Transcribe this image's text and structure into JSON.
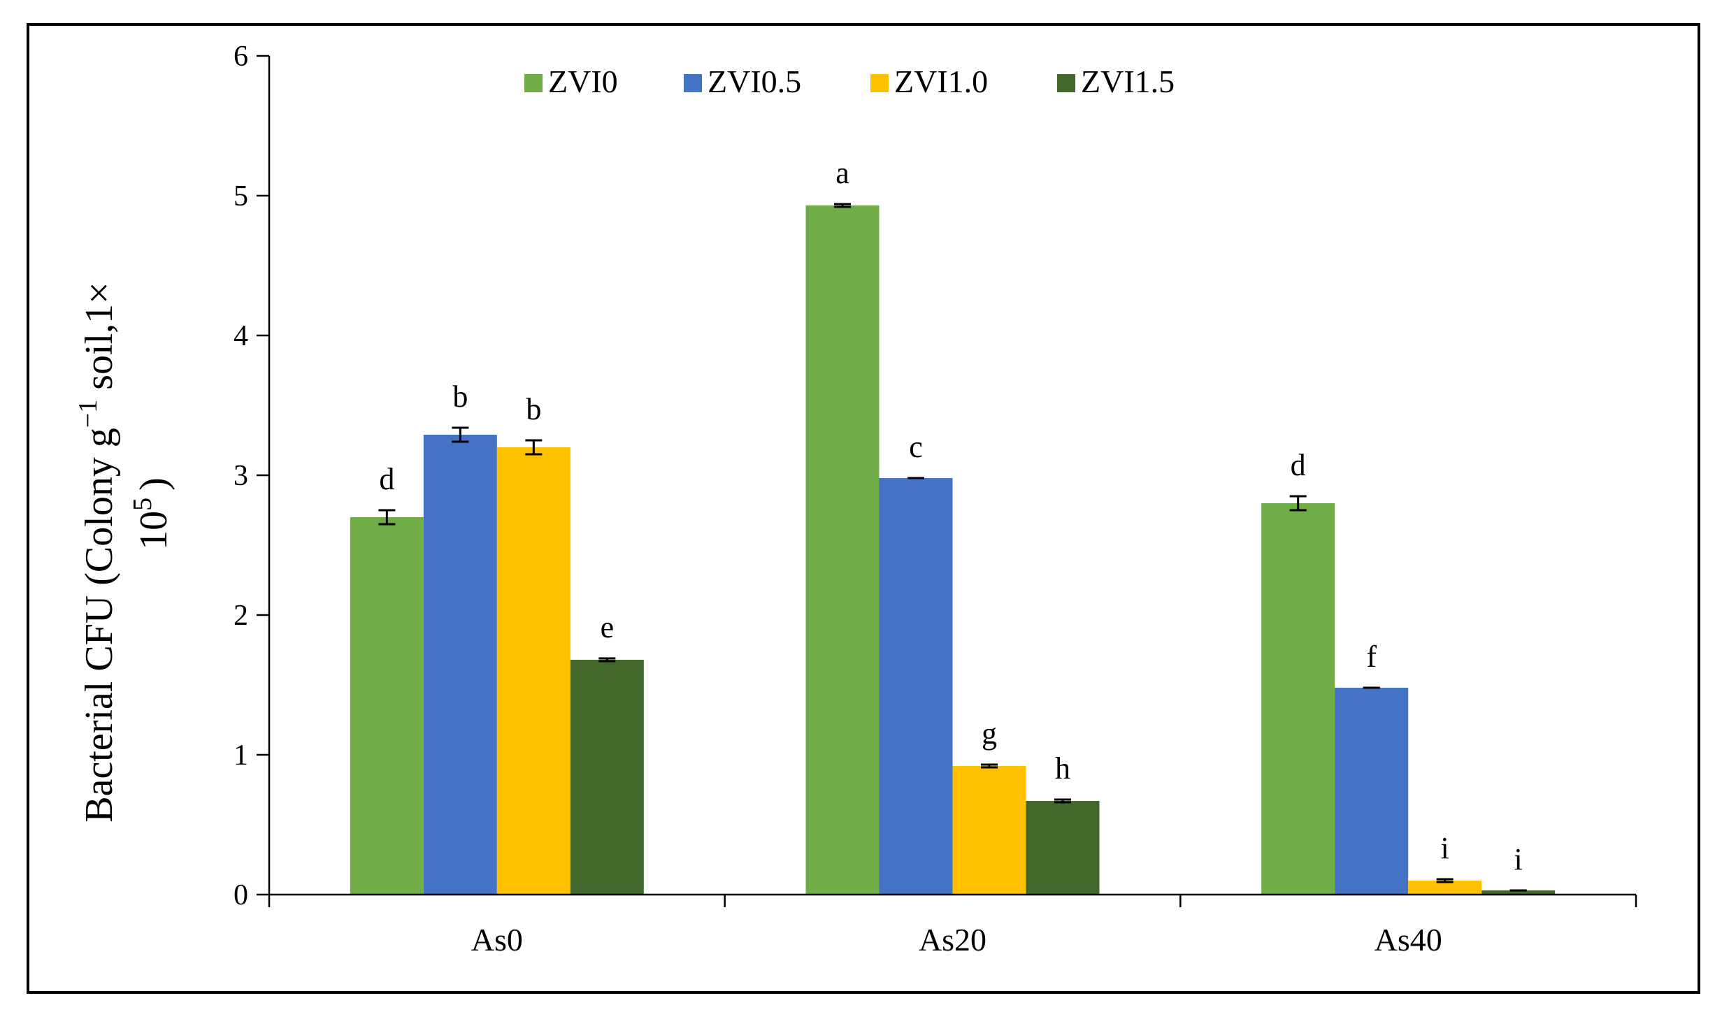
{
  "chart_data": {
    "type": "bar",
    "title": "",
    "xlabel": "",
    "ylabel_line1": "Bacterial CFU  (Colony g",
    "ylabel_sup1": "−1",
    "ylabel_line1_tail": " soil,1×",
    "ylabel_line2": "10",
    "ylabel_sup2": "5",
    "ylabel_line2_tail": ")",
    "ylim": [
      0,
      6
    ],
    "yticks": [
      "0",
      "1",
      "2",
      "3",
      "4",
      "5",
      "6"
    ],
    "categories": [
      "As0",
      "As20",
      "As40"
    ],
    "series": [
      {
        "name": "ZVI0",
        "color": "#70AD47",
        "values": [
          2.7,
          4.93,
          2.8
        ],
        "errors": [
          0.05,
          0.01,
          0.05
        ],
        "letters": [
          "d",
          "a",
          "d"
        ]
      },
      {
        "name": "ZVI0.5",
        "color": "#4472C4",
        "values": [
          3.29,
          2.98,
          1.48
        ],
        "errors": [
          0.05,
          0.0,
          0.0
        ],
        "letters": [
          "b",
          "c",
          "f"
        ]
      },
      {
        "name": "ZVI1.0",
        "color": "#FFC000",
        "values": [
          3.2,
          0.92,
          0.1
        ],
        "errors": [
          0.05,
          0.01,
          0.01
        ],
        "letters": [
          "b",
          "g",
          "i"
        ]
      },
      {
        "name": "ZVI1.5",
        "color": "#43682B",
        "values": [
          1.68,
          0.67,
          0.03
        ],
        "errors": [
          0.01,
          0.01,
          0.0
        ],
        "letters": [
          "e",
          "h",
          "i"
        ]
      }
    ],
    "legend_position": "top-center"
  }
}
